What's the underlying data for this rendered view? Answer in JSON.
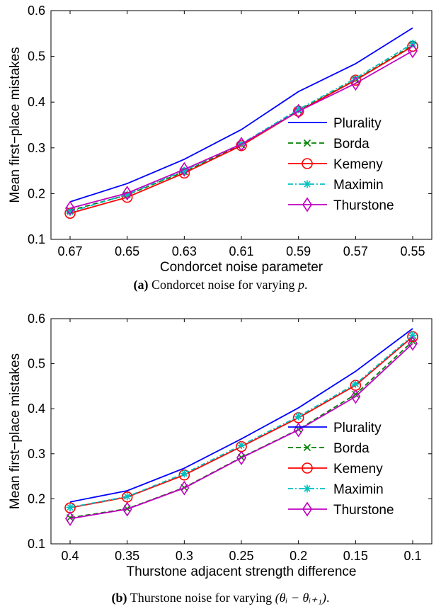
{
  "chart_data": [
    {
      "type": "line",
      "id": "a",
      "xlabel": "Condorcet noise parameter",
      "ylabel": "Mean first−place mistakes",
      "categories": [
        "0.67",
        "0.65",
        "0.63",
        "0.61",
        "0.59",
        "0.57",
        "0.55"
      ],
      "ylim": [
        0.1,
        0.6
      ],
      "yticks": [
        "0.1",
        "0.2",
        "0.3",
        "0.4",
        "0.5",
        "0.6"
      ],
      "grid": false,
      "legend_position": "bottom-right",
      "series": [
        {
          "name": "Plurality",
          "color": "#0000ff",
          "dash": "solid",
          "marker": "none",
          "values": [
            0.182,
            0.222,
            0.275,
            0.34,
            0.423,
            0.484,
            0.562
          ]
        },
        {
          "name": "Borda",
          "color": "#008000",
          "dash": "dashed",
          "marker": "x",
          "values": [
            0.163,
            0.197,
            0.248,
            0.307,
            0.382,
            0.449,
            0.524
          ]
        },
        {
          "name": "Kemeny",
          "color": "#ff0000",
          "dash": "solid",
          "marker": "circle",
          "values": [
            0.157,
            0.192,
            0.245,
            0.305,
            0.38,
            0.448,
            0.522
          ]
        },
        {
          "name": "Maximin",
          "color": "#00c0c0",
          "dash": "dashdot",
          "marker": "asterisk",
          "values": [
            0.16,
            0.198,
            0.25,
            0.309,
            0.384,
            0.452,
            0.528
          ]
        },
        {
          "name": "Thurstone",
          "color": "#c000c0",
          "dash": "solid",
          "marker": "diamond",
          "values": [
            0.168,
            0.201,
            0.253,
            0.308,
            0.38,
            0.441,
            0.512
          ]
        }
      ]
    },
    {
      "type": "line",
      "id": "b",
      "xlabel": "Thurstone adjacent strength difference",
      "ylabel": "Mean first−place mistakes",
      "categories": [
        "0.4",
        "0.35",
        "0.3",
        "0.25",
        "0.2",
        "0.15",
        "0.1"
      ],
      "ylim": [
        0.1,
        0.6
      ],
      "yticks": [
        "0.1",
        "0.2",
        "0.3",
        "0.4",
        "0.5",
        "0.6"
      ],
      "grid": false,
      "legend_position": "bottom-right",
      "series": [
        {
          "name": "Plurality",
          "color": "#0000ff",
          "dash": "solid",
          "marker": "none",
          "values": [
            0.193,
            0.218,
            0.268,
            0.333,
            0.402,
            0.483,
            0.578
          ]
        },
        {
          "name": "Borda",
          "color": "#008000",
          "dash": "dashed",
          "marker": "x",
          "values": [
            0.158,
            0.178,
            0.225,
            0.292,
            0.354,
            0.432,
            0.55
          ]
        },
        {
          "name": "Kemeny",
          "color": "#ff0000",
          "dash": "solid",
          "marker": "circle",
          "values": [
            0.18,
            0.204,
            0.253,
            0.316,
            0.38,
            0.452,
            0.56
          ]
        },
        {
          "name": "Maximin",
          "color": "#00c0c0",
          "dash": "dashdot",
          "marker": "asterisk",
          "values": [
            0.181,
            0.205,
            0.256,
            0.319,
            0.383,
            0.455,
            0.563
          ]
        },
        {
          "name": "Thurstone",
          "color": "#c000c0",
          "dash": "solid",
          "marker": "diamond",
          "values": [
            0.156,
            0.177,
            0.224,
            0.291,
            0.353,
            0.427,
            0.545
          ]
        }
      ]
    }
  ],
  "captions": [
    {
      "label": "(a)",
      "text": "Condorcet noise for varying ",
      "var": "p",
      "end": "."
    },
    {
      "label": "(b)",
      "text": "Thurstone noise for varying ",
      "var": "(θᵢ − θᵢ₊₁)",
      "end": "."
    }
  ]
}
